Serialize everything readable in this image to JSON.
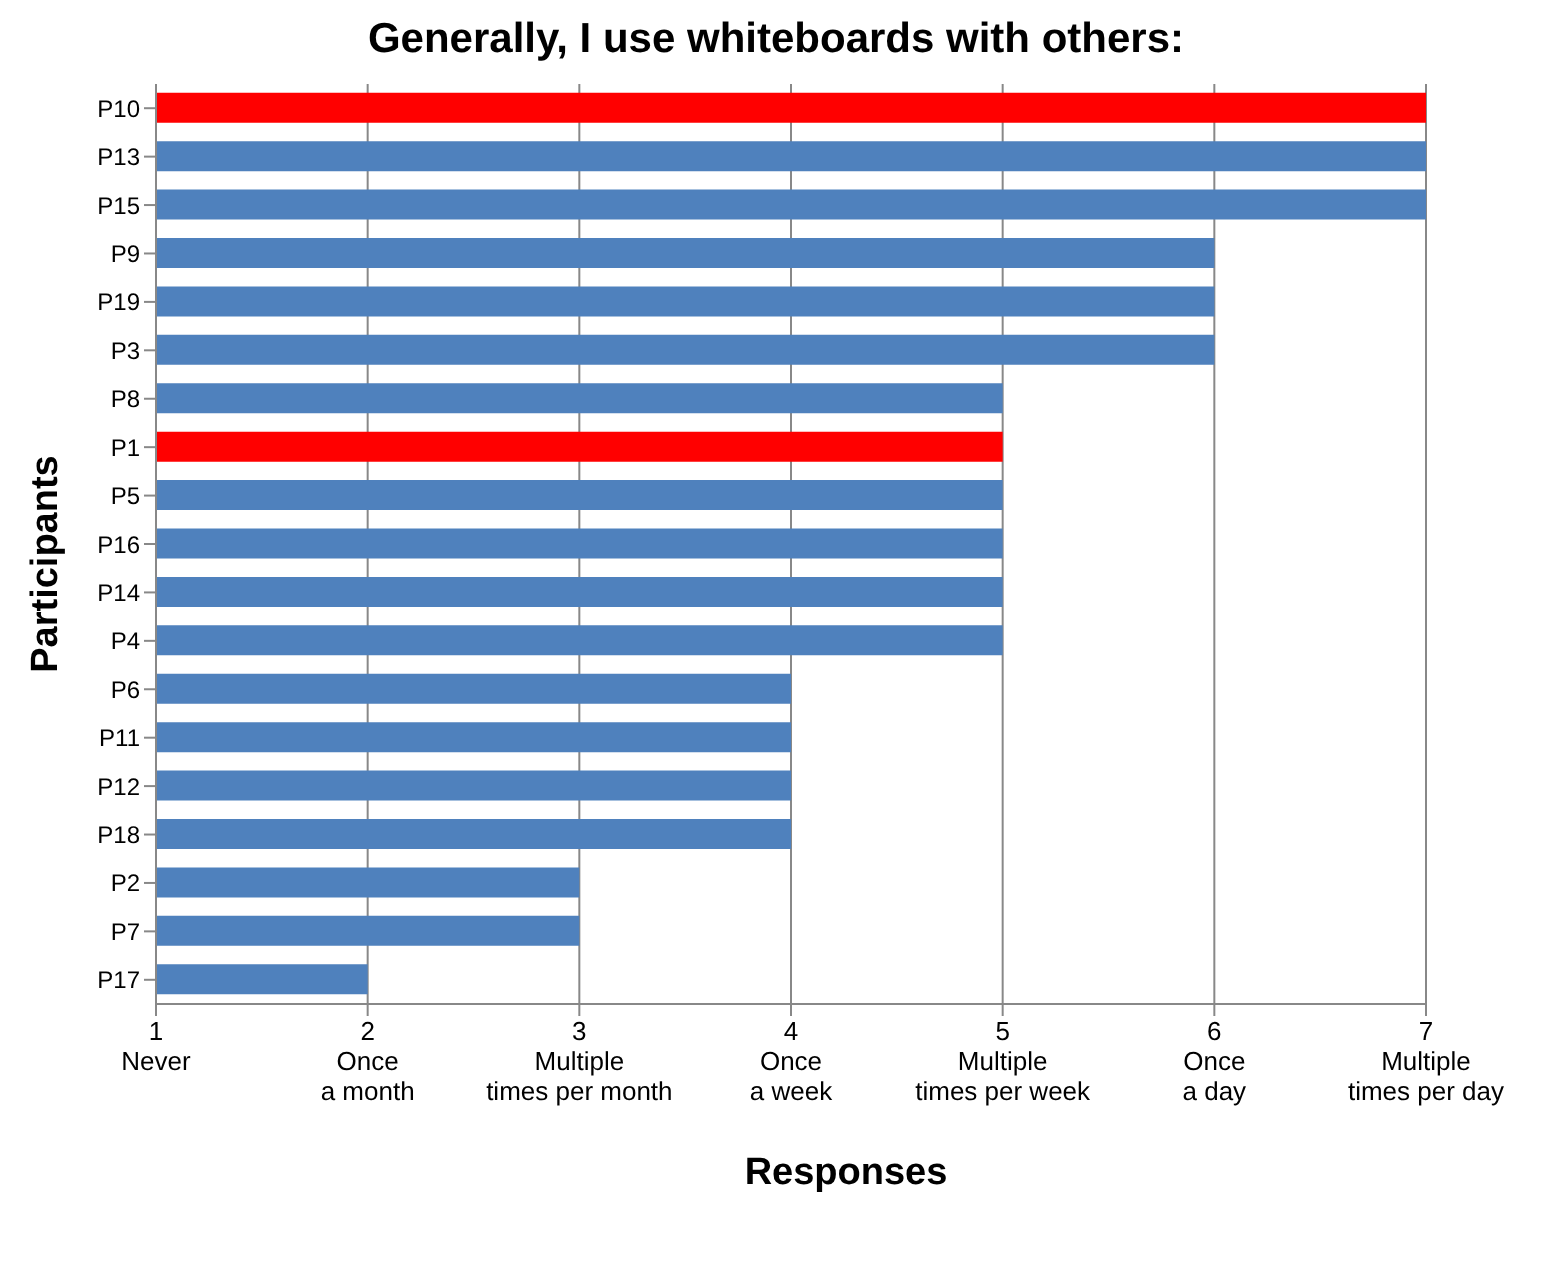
{
  "chart_data": {
    "type": "bar",
    "orientation": "horizontal",
    "title": "Generally, I use whiteboards with others:",
    "xlabel": "Responses",
    "ylabel": "Participants",
    "categories": [
      "P10",
      "P13",
      "P15",
      "P9",
      "P19",
      "P3",
      "P8",
      "P1",
      "P5",
      "P16",
      "P14",
      "P4",
      "P6",
      "P11",
      "P12",
      "P18",
      "P2",
      "P7",
      "P17"
    ],
    "values": [
      7,
      7,
      7,
      6,
      6,
      6,
      5,
      5,
      5,
      5,
      5,
      5,
      4,
      4,
      4,
      4,
      3,
      3,
      2
    ],
    "colors": [
      "#ff0000",
      "#4f81bd",
      "#4f81bd",
      "#4f81bd",
      "#4f81bd",
      "#4f81bd",
      "#4f81bd",
      "#ff0000",
      "#4f81bd",
      "#4f81bd",
      "#4f81bd",
      "#4f81bd",
      "#4f81bd",
      "#4f81bd",
      "#4f81bd",
      "#4f81bd",
      "#4f81bd",
      "#4f81bd",
      "#4f81bd"
    ],
    "xlim": [
      1,
      7
    ],
    "xticks": [
      {
        "value": 1,
        "label": "1\nNever"
      },
      {
        "value": 2,
        "label": "2\nOnce\na month"
      },
      {
        "value": 3,
        "label": "3\nMultiple\ntimes per month"
      },
      {
        "value": 4,
        "label": "4\nOnce\na week"
      },
      {
        "value": 5,
        "label": "5\nMultiple\ntimes per week"
      },
      {
        "value": 6,
        "label": "6\nOnce\na day"
      },
      {
        "value": 7,
        "label": "7\nMultiple\ntimes per day"
      }
    ],
    "grid": "x",
    "legend": false
  }
}
